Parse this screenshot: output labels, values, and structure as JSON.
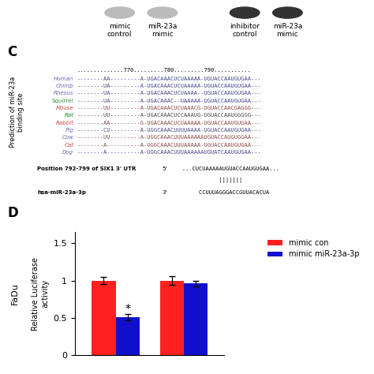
{
  "chart_data": {
    "type": "bar",
    "categories": [
      null,
      null
    ],
    "series": [
      {
        "name": "mimic con",
        "color": "#FF2020",
        "values": [
          1.0,
          1.0
        ],
        "errors": [
          0.05,
          0.055
        ]
      },
      {
        "name": "mimic miR-23a-3p",
        "color": "#1010CC",
        "values": [
          0.51,
          0.96
        ],
        "errors": [
          0.04,
          0.04
        ]
      }
    ],
    "ylabel": "Relative Luciferase\nactivity",
    "ylim": [
      0,
      1.65
    ],
    "yticks": [
      0,
      0.5,
      1,
      1.5
    ],
    "legend": "upper right",
    "annotations": [
      {
        "text": "*",
        "category": 0,
        "series": "mimic miR-23a-3p"
      }
    ],
    "panel_labels": [
      "C",
      "D"
    ],
    "side_label": "FaDu",
    "blot": {
      "lanes": [
        {
          "label": "mimic\ncontrol",
          "color": "#BBBBBB"
        },
        {
          "label": "miR-23a\nmimic",
          "color": "#BBBBBB"
        },
        {
          "label": "inhibitor\ncontrol",
          "color": "#333333"
        },
        {
          "label": "miR-23a\nmimic",
          "color": "#333333"
        }
      ]
    },
    "alignment": {
      "title": "Prediction of miR-23a\nbinding site",
      "header": "..............770.........780.........790...........",
      "rows": [
        {
          "name": "Human",
          "name_color": "#6666BB",
          "seq": "--------AA---------A-UGACAAACUCUAAAAA-UGUACCAAUGUGAA---",
          "seq_color": "#444488"
        },
        {
          "name": "Chimp",
          "name_color": "#6666BB",
          "seq": "--------UA---------A-UGACAAACUCUAAAAA-UGUACCAAUGUGAA---",
          "seq_color": "#444488"
        },
        {
          "name": "Rhesus",
          "name_color": "#6666BB",
          "seq": "--------UA---------A-UGACAAACUCUAAAA--UGUACCAAUGUGAA---",
          "seq_color": "#444488"
        },
        {
          "name": "Squirrel",
          "name_color": "#228B22",
          "seq": "--------UA---------A-UGACAAAC--UAAAAA-UGUACCAAUGUGAA---",
          "seq_color": "#444488"
        },
        {
          "name": "Mouse",
          "name_color": "#CC4444",
          "seq": "--------UU---------A-UGACAAACUCUAAACG-UGUACCAACGAGGG---",
          "seq_color": "#884444"
        },
        {
          "name": "Rat",
          "name_color": "#228B22",
          "seq": "--------UU---------A-UGACAAACUCCAAAUG-UGUACCAAUGGGGG---",
          "seq_color": "#444444"
        },
        {
          "name": "Rabbit",
          "name_color": "#CC4444",
          "seq": "--------AA---------G-UGACAAACUCUAAAAA-UGUACCAAUGUGAA---",
          "seq_color": "#884444"
        },
        {
          "name": "Pig",
          "name_color": "#6666BB",
          "seq": "--------CU---------A-UGGCAAACUUUUAAAA-UGUACCAAUGUGAA---",
          "seq_color": "#444488"
        },
        {
          "name": "Cow",
          "name_color": "#6666BB",
          "seq": "--------UU---------A-UGGCAAACUUUAAAAAAUGUACCAUGUGGAA---",
          "seq_color": "#884444"
        },
        {
          "name": "Cat",
          "name_color": "#CC4444",
          "seq": "--------A----------A-UGGCAAACUUUAAAAA-UGUACCAAUGUGAA---",
          "seq_color": "#884444"
        },
        {
          "name": "Dog",
          "name_color": "#6666BB",
          "seq": "--------A----------A-UGGCAAACUUUAAAAAAUGUATCAAUGUGAA---",
          "seq_color": "#444488"
        }
      ],
      "pos_text": "Position 792-799 of SIX1 3' UTR",
      "prime5": "5'",
      "site_seq": "   ...CUCUAAAAAUGUACCAAUGUGAA...",
      "matches": "              |||||||",
      "mirna_label": "hsa-miR-23a-3p",
      "prime3": "3'",
      "mirna_seq": "        CCUUUAGGGACCGUUACACUA"
    }
  }
}
